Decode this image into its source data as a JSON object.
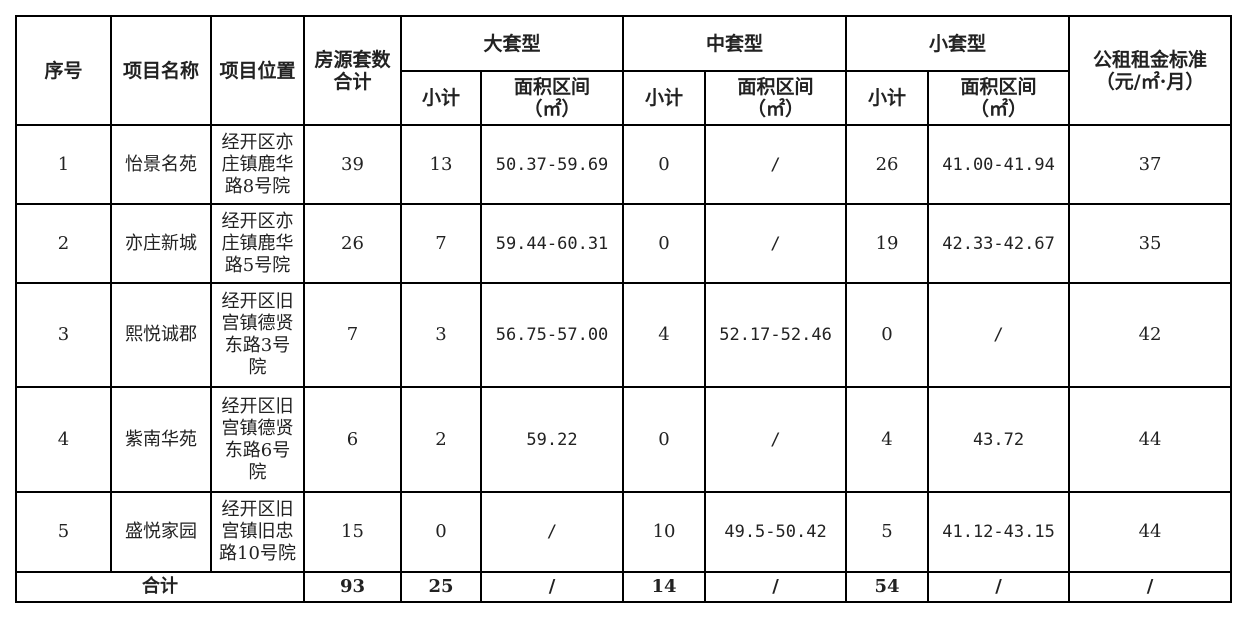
{
  "headers": {
    "seq": "序号",
    "name": "项目名称",
    "location": "项目位置",
    "total": "房源套数合计",
    "large": "大套型",
    "medium": "中套型",
    "small": "小套型",
    "rent": "公租租金标准（元/㎡·月）",
    "subtotal": "小计",
    "area_range": "面积区间（㎡）"
  },
  "rows": [
    {
      "seq": "1",
      "name": "怡景名苑",
      "location": "经开区亦庄镇鹿华路8号院",
      "total": "39",
      "large_count": "13",
      "large_area": "50.37-59.69",
      "medium_count": "0",
      "medium_area": "/",
      "small_count": "26",
      "small_area": "41.00-41.94",
      "rent": "37"
    },
    {
      "seq": "2",
      "name": "亦庄新城",
      "location": "经开区亦庄镇鹿华路5号院",
      "total": "26",
      "large_count": "7",
      "large_area": "59.44-60.31",
      "medium_count": "0",
      "medium_area": "/",
      "small_count": "19",
      "small_area": "42.33-42.67",
      "rent": "35"
    },
    {
      "seq": "3",
      "name": "熙悦诚郡",
      "location": "经开区旧宫镇德贤东路3号院",
      "total": "7",
      "large_count": "3",
      "large_area": "56.75-57.00",
      "medium_count": "4",
      "medium_area": "52.17-52.46",
      "small_count": "0",
      "small_area": "/",
      "rent": "42"
    },
    {
      "seq": "4",
      "name": "紫南华苑",
      "location": "经开区旧宫镇德贤东路6号院",
      "total": "6",
      "large_count": "2",
      "large_area": "59.22",
      "medium_count": "0",
      "medium_area": "/",
      "small_count": "4",
      "small_area": "43.72",
      "rent": "44"
    },
    {
      "seq": "5",
      "name": "盛悦家园",
      "location": "经开区旧宫镇旧忠路10号院",
      "total": "15",
      "large_count": "0",
      "large_area": "/",
      "medium_count": "10",
      "medium_area": "49.5-50.42",
      "small_count": "5",
      "small_area": "41.12-43.15",
      "rent": "44"
    }
  ],
  "totals": {
    "label": "合计",
    "total": "93",
    "large_count": "25",
    "large_area": "/",
    "medium_count": "14",
    "medium_area": "/",
    "small_count": "54",
    "small_area": "/",
    "rent": "/"
  }
}
